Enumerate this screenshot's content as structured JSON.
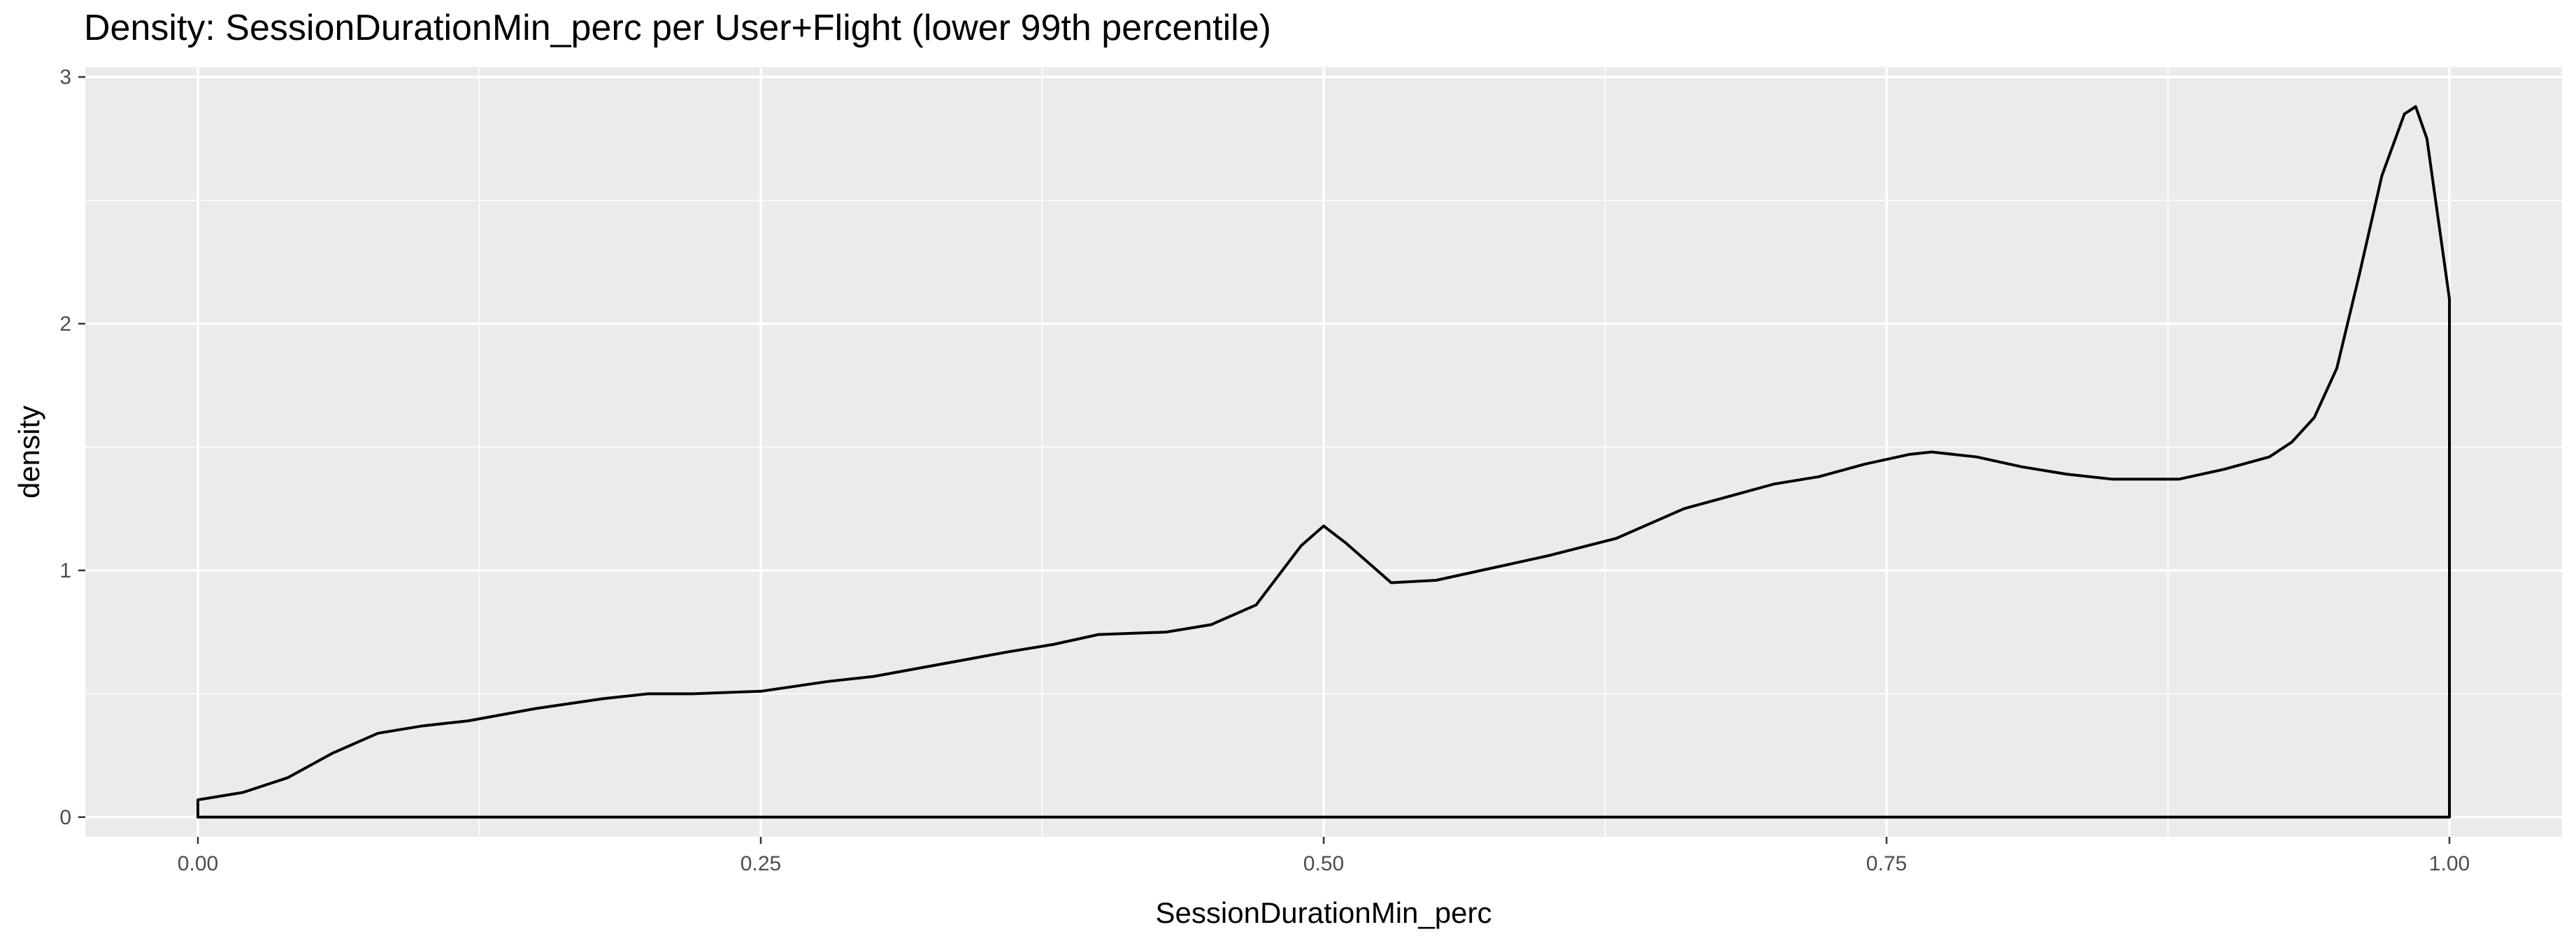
{
  "chart_data": {
    "type": "area",
    "title": "Density: SessionDurationMin_perc per User+Flight (lower 99th percentile)",
    "xlabel": "SessionDurationMin_perc",
    "ylabel": "density",
    "xlim": [
      -0.05,
      1.05
    ],
    "ylim": [
      -0.08,
      3.04
    ],
    "x_ticks": [
      0,
      0.25,
      0.5,
      0.75,
      1
    ],
    "x_tick_labels": [
      "0.00",
      "0.25",
      "0.50",
      "0.75",
      "1.00"
    ],
    "y_ticks": [
      0,
      1,
      2,
      3
    ],
    "y_tick_labels": [
      "0",
      "1",
      "2",
      "3"
    ],
    "grid": true,
    "background": "#ebebeb",
    "grid_color": "#ffffff",
    "line_color": "#000000",
    "fill": "none",
    "series": [
      {
        "x": [
          0,
          0.02,
          0.04,
          0.06,
          0.08,
          0.1,
          0.12,
          0.15,
          0.18,
          0.2,
          0.22,
          0.25,
          0.28,
          0.3,
          0.33,
          0.36,
          0.38,
          0.4,
          0.43,
          0.45,
          0.47,
          0.49,
          0.5,
          0.51,
          0.53,
          0.55,
          0.57,
          0.6,
          0.63,
          0.66,
          0.68,
          0.7,
          0.72,
          0.74,
          0.76,
          0.77,
          0.79,
          0.81,
          0.83,
          0.85,
          0.87,
          0.88,
          0.9,
          0.92,
          0.93,
          0.94,
          0.95,
          0.96,
          0.97,
          0.98,
          0.985,
          0.99,
          1.0
        ],
        "y": [
          0.07,
          0.1,
          0.16,
          0.26,
          0.34,
          0.37,
          0.39,
          0.44,
          0.48,
          0.5,
          0.5,
          0.51,
          0.55,
          0.57,
          0.62,
          0.67,
          0.7,
          0.74,
          0.75,
          0.78,
          0.86,
          1.1,
          1.18,
          1.11,
          0.95,
          0.96,
          1.0,
          1.06,
          1.13,
          1.25,
          1.3,
          1.35,
          1.38,
          1.43,
          1.47,
          1.48,
          1.46,
          1.42,
          1.39,
          1.37,
          1.37,
          1.37,
          1.41,
          1.46,
          1.52,
          1.62,
          1.82,
          2.2,
          2.6,
          2.85,
          2.88,
          2.75,
          2.1
        ]
      }
    ]
  }
}
